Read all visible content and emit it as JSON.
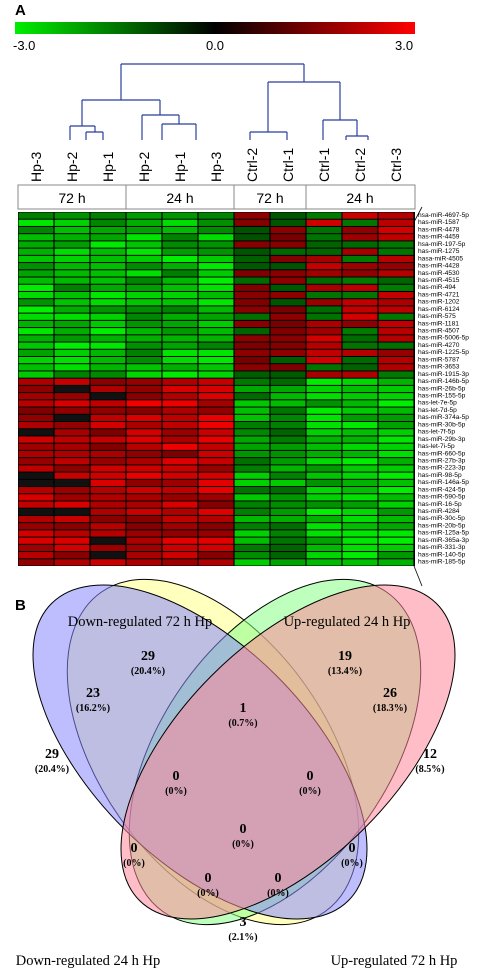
{
  "panel_a": {
    "label": "A",
    "colorbar": {
      "ticks": [
        "-3.0",
        "0.0",
        "3.0"
      ],
      "low_color": "#00ee00",
      "mid_color": "#000000",
      "high_color": "#ff0000"
    },
    "samples": [
      "Hp-3",
      "Hp-2",
      "Hp-1",
      "Hp-2",
      "Hp-1",
      "Hp-3",
      "Ctrl-2",
      "Ctrl-1",
      "Ctrl-1",
      "Ctrl-2",
      "Ctrl-3"
    ],
    "time_groups": [
      {
        "label": "72 h",
        "span": 3
      },
      {
        "label": "24 h",
        "span": 3
      },
      {
        "label": "72 h",
        "span": 2
      },
      {
        "label": "24 h",
        "span": 3
      }
    ],
    "mirnas": [
      "hsa-miR-4697-5p",
      "has-miR-1587",
      "has-miR-4478",
      "has-miR-4459",
      "hsa-miR-197-5p",
      "has-miR-1275",
      "hasa-miR-4505",
      "has-miR-4428",
      "has-miR-4530",
      "has-miR-4515",
      "has-miR-494",
      "has-miR-4721",
      "has-miR-1202",
      "has-miR-6124",
      "has-miR-575",
      "has-miR-1181",
      "has-miR-4507",
      "has-miR-5006-5p",
      "has-miR-4270",
      "has-miR-1225-5p",
      "has-miR-5787",
      "has-miR-3653",
      "has-miR-1915-3p",
      "has-miR-146b-5p",
      "has-miR-26b-5p",
      "has-miR-155-5p",
      "has-let-7e-5p",
      "has-let-7d-5p",
      "has-miR-374a-5p",
      "has-miR-30b-5p",
      "has-let-7f-5p",
      "has-miR-29b-3p",
      "has-let-7i-5p",
      "has-miR-660-5p",
      "has-miR-27b-3p",
      "has-miR-223-3p",
      "has-miR-98-5p",
      "has-miR-146a-5p",
      "has-miR-424-5p",
      "has-miR-590-5p",
      "has-miR-16-5p",
      "has-miR-4284",
      "has-miR-30c-5p",
      "has-miR-20b-5p",
      "has-miR-125a-5p",
      "has-miR-365a-3p",
      "has-miR-331-3p",
      "has-miR-140-5p",
      "has-miR-185-5p"
    ]
  },
  "panel_b": {
    "label": "B",
    "sets": [
      {
        "name": "Down-regulated 72 h Hp",
        "color": "#ffff88"
      },
      {
        "name": "Up-regulated 24 h Hp",
        "color": "#88ff88"
      },
      {
        "name": "Down-regulated 24 h Hp",
        "color": "#8888ff"
      },
      {
        "name": "Up-regulated 72 h Hp",
        "color": "#ff8899"
      }
    ],
    "regions": [
      {
        "count": "29",
        "pct": "(20.4%)"
      },
      {
        "count": "19",
        "pct": "(13.4%)"
      },
      {
        "count": "23",
        "pct": "(16.2%)"
      },
      {
        "count": "1",
        "pct": "(0.7%)"
      },
      {
        "count": "26",
        "pct": "(18.3%)"
      },
      {
        "count": "29",
        "pct": "(20.4%)"
      },
      {
        "count": "12",
        "pct": "(8.5%)"
      },
      {
        "count": "0",
        "pct": "(0%)"
      },
      {
        "count": "0",
        "pct": "(0%)"
      },
      {
        "count": "0",
        "pct": "(0%)"
      },
      {
        "count": "0",
        "pct": "(0%)"
      },
      {
        "count": "0",
        "pct": "(0%)"
      },
      {
        "count": "0",
        "pct": "(0%)"
      },
      {
        "count": "0",
        "pct": "(0%)"
      },
      {
        "count": "3",
        "pct": "(2.1%)"
      }
    ]
  }
}
